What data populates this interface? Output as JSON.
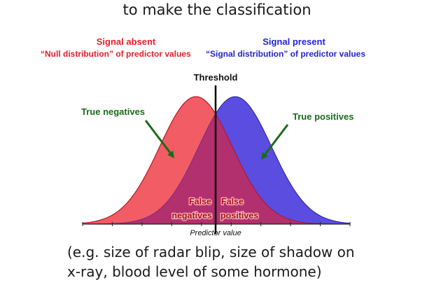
{
  "heading": "to make the classification",
  "signal_absent": {
    "title": "Signal absent",
    "subtitle": "“Null distribution” of predictor values",
    "color": "#e8202a"
  },
  "signal_present": {
    "title": "Signal present",
    "subtitle": "“Signal distribution” of predictor values",
    "color": "#2424d0"
  },
  "diagram": {
    "threshold_label": "Threshold",
    "true_negatives_label": "True negatives",
    "true_positives_label": "True positives",
    "false_negatives_label": [
      "False",
      "negatives"
    ],
    "false_positives_label": [
      "False",
      "positives"
    ],
    "axis_label": "Predictor value",
    "colors": {
      "null_fill": "#f25c64",
      "signal_fill": "#5a4de0",
      "overlap_fill": "#b2306e",
      "annotation_green": "#1a6b1a",
      "false_label": "#b01010"
    }
  },
  "footer": {
    "line1": "(e.g. size of radar blip, size of shadow on",
    "line2": "x-ray, blood level of some hormone)"
  }
}
